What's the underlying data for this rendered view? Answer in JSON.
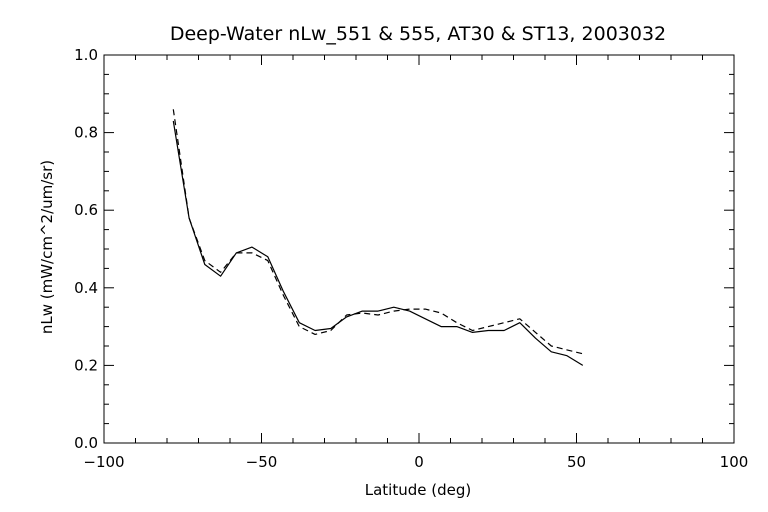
{
  "chart_data": {
    "type": "line",
    "title": "Deep-Water nLw_551 & 555, AT30 & ST13, 2003032",
    "xlabel": "Latitude (deg)",
    "ylabel": "nLw (mW/cm^2/um/sr)",
    "xlim": [
      -100,
      100
    ],
    "ylim": [
      0.0,
      1.0
    ],
    "xticks": [
      -100,
      -50,
      0,
      50,
      100
    ],
    "yticks": [
      0.0,
      0.2,
      0.4,
      0.6,
      0.8,
      1.0
    ],
    "xtick_labels": [
      "−100",
      "−50",
      "0",
      "50",
      "100"
    ],
    "ytick_labels": [
      "0.0",
      "0.2",
      "0.4",
      "0.6",
      "0.8",
      "1.0"
    ],
    "grid": false,
    "series": [
      {
        "style": "solid",
        "color": "#000000",
        "x": [
          -78,
          -73,
          -68,
          -63,
          -58,
          -53,
          -48,
          -43,
          -38,
          -33,
          -28,
          -23,
          -18,
          -13,
          -8,
          -3,
          2,
          7,
          12,
          17,
          22,
          27,
          32,
          37,
          42,
          47,
          52
        ],
        "y": [
          0.83,
          0.58,
          0.46,
          0.43,
          0.49,
          0.505,
          0.48,
          0.39,
          0.31,
          0.29,
          0.295,
          0.325,
          0.34,
          0.34,
          0.35,
          0.34,
          0.32,
          0.3,
          0.3,
          0.285,
          0.29,
          0.29,
          0.31,
          0.27,
          0.235,
          0.225,
          0.2
        ]
      },
      {
        "style": "dashed",
        "color": "#000000",
        "x": [
          -78,
          -73,
          -68,
          -63,
          -58,
          -53,
          -48,
          -43,
          -38,
          -33,
          -28,
          -23,
          -18,
          -13,
          -8,
          -3,
          2,
          7,
          12,
          17,
          22,
          27,
          32,
          37,
          42,
          47,
          52
        ],
        "y": [
          0.86,
          0.58,
          0.47,
          0.44,
          0.49,
          0.49,
          0.47,
          0.38,
          0.3,
          0.28,
          0.29,
          0.33,
          0.335,
          0.33,
          0.34,
          0.345,
          0.345,
          0.335,
          0.31,
          0.29,
          0.3,
          0.31,
          0.32,
          0.285,
          0.25,
          0.24,
          0.23
        ]
      }
    ]
  }
}
